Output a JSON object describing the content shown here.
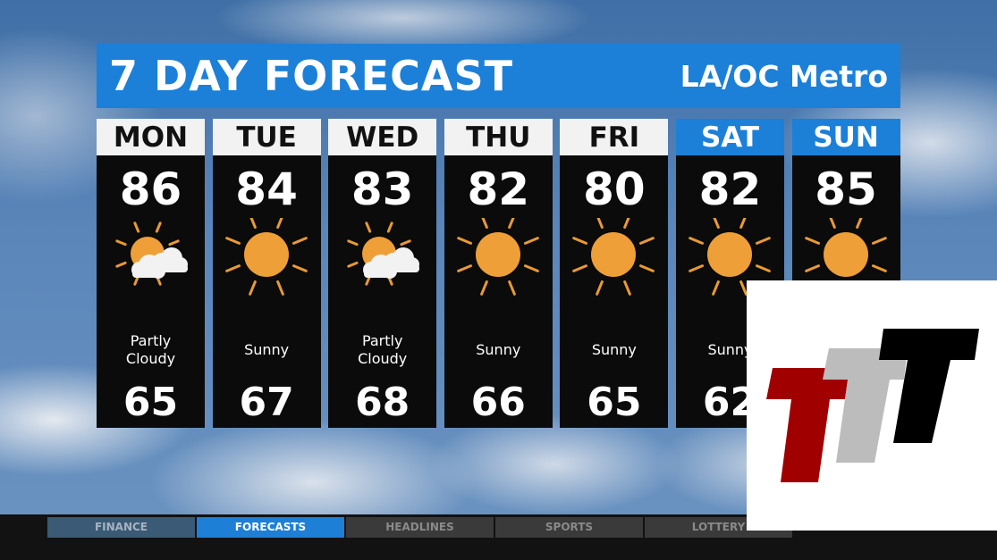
{
  "header": {
    "title": "7 DAY FORECAST",
    "region": "LA/OC Metro",
    "accent": "#1c80d8"
  },
  "days": [
    {
      "name": "MON",
      "high": "86",
      "condition": "Partly Cloudy",
      "low": "65",
      "icon": "partly-cloudy-icon",
      "weekend": false
    },
    {
      "name": "TUE",
      "high": "84",
      "condition": "Sunny",
      "low": "67",
      "icon": "sun-icon",
      "weekend": false
    },
    {
      "name": "WED",
      "high": "83",
      "condition": "Partly Cloudy",
      "low": "68",
      "icon": "partly-cloudy-icon",
      "weekend": false
    },
    {
      "name": "THU",
      "high": "82",
      "condition": "Sunny",
      "low": "66",
      "icon": "sun-icon",
      "weekend": false
    },
    {
      "name": "FRI",
      "high": "80",
      "condition": "Sunny",
      "low": "65",
      "icon": "sun-icon",
      "weekend": false
    },
    {
      "name": "SAT",
      "high": "82",
      "condition": "Sunny",
      "low": "62",
      "icon": "sun-icon",
      "weekend": true
    },
    {
      "name": "SUN",
      "high": "85",
      "icon": "sun-icon",
      "weekend": true
    }
  ],
  "ticker": {
    "tabs": [
      {
        "label": "FINANCE",
        "color": "#3a5a75"
      },
      {
        "label": "FORECASTS",
        "color": "#1e7fd6",
        "active": true
      },
      {
        "label": "HEADLINES",
        "color": "#3a3a3a"
      },
      {
        "label": "SPORTS",
        "color": "#3a3a3a"
      },
      {
        "label": "LOTTERY",
        "color": "#3a3a3a"
      }
    ]
  },
  "logo": {
    "colors": [
      "#a00000",
      "#bcbcbc",
      "#000000"
    ]
  }
}
